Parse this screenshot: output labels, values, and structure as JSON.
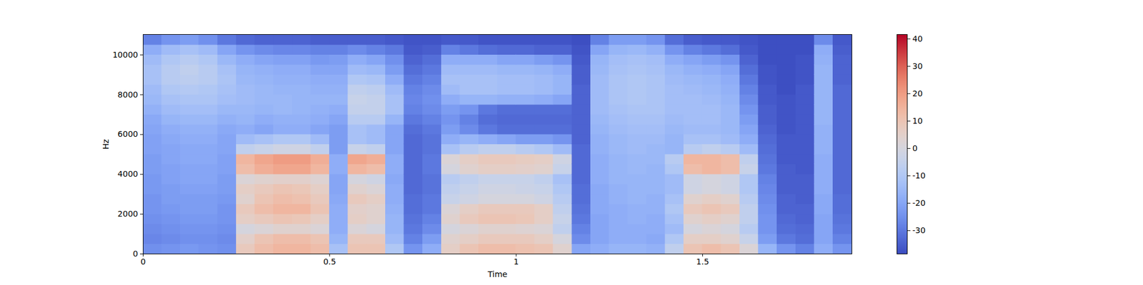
{
  "chart_data": {
    "type": "heatmap",
    "xlabel": "Time",
    "ylabel": "Hz",
    "xlim": [
      0,
      1.9
    ],
    "ylim": [
      0,
      11025
    ],
    "xticks": [
      0,
      0.5,
      1,
      1.5
    ],
    "yticks": [
      0,
      2000,
      4000,
      6000,
      8000,
      10000
    ],
    "time_edges": [
      0,
      0.05,
      0.1,
      0.15,
      0.2,
      0.25,
      0.3,
      0.35,
      0.4,
      0.45,
      0.5,
      0.55,
      0.6,
      0.65,
      0.7,
      0.75,
      0.8,
      0.85,
      0.9,
      0.95,
      1,
      1.05,
      1.1,
      1.15,
      1.2,
      1.25,
      1.3,
      1.35,
      1.4,
      1.45,
      1.5,
      1.55,
      1.6,
      1.65,
      1.7,
      1.75,
      1.8,
      1.85,
      1.9
    ],
    "freq_edges": [
      0,
      500,
      1000,
      1500,
      2000,
      2500,
      3000,
      3500,
      4000,
      4500,
      5000,
      5500,
      6000,
      6500,
      7000,
      7500,
      8000,
      8500,
      9000,
      9500,
      10000,
      10500,
      11025
    ],
    "cells": [
      [
        -25,
        -27,
        -26,
        -25,
        -24,
        -24,
        -23,
        -23,
        -22,
        -22,
        -21,
        -21,
        -20,
        -19,
        -17,
        -15,
        -14,
        -12,
        -12,
        -14,
        -18,
        -28
      ],
      [
        -24,
        -26,
        -25,
        -24,
        -23,
        -22,
        -22,
        -21,
        -21,
        -20,
        -20,
        -19,
        -18,
        -16,
        -14,
        -12,
        -10,
        -8,
        -8,
        -10,
        -14,
        -24
      ],
      [
        -23,
        -25,
        -24,
        -23,
        -22,
        -22,
        -21,
        -20,
        -20,
        -19,
        -19,
        -18,
        -17,
        -15,
        -13,
        -11,
        -9,
        -7,
        -6,
        -8,
        -12,
        -22
      ],
      [
        -24,
        -25,
        -24,
        -23,
        -22,
        -22,
        -21,
        -20,
        -20,
        -19,
        -19,
        -18,
        -17,
        -15,
        -13,
        -11,
        -10,
        -8,
        -8,
        -10,
        -14,
        -25
      ],
      [
        -25,
        -26,
        -25,
        -24,
        -24,
        -23,
        -22,
        -22,
        -21,
        -21,
        -20,
        -20,
        -19,
        -17,
        -15,
        -13,
        -12,
        -11,
        -12,
        -15,
        -20,
        -30
      ],
      [
        8,
        5,
        0,
        6,
        8,
        4,
        6,
        2,
        12,
        14,
        -6,
        -14,
        -18,
        -16,
        -15,
        -14,
        -14,
        -15,
        -16,
        -18,
        -24,
        -33
      ],
      [
        12,
        10,
        2,
        8,
        12,
        10,
        8,
        4,
        16,
        18,
        -4,
        -12,
        -20,
        -18,
        -16,
        -15,
        -15,
        -16,
        -17,
        -20,
        -26,
        -34
      ],
      [
        14,
        12,
        4,
        10,
        14,
        12,
        10,
        5,
        18,
        20,
        -2,
        -10,
        -18,
        -17,
        -15,
        -15,
        -16,
        -17,
        -18,
        -21,
        -27,
        -34
      ],
      [
        14,
        12,
        4,
        9,
        14,
        11,
        9,
        5,
        18,
        20,
        -2,
        -10,
        -18,
        -17,
        -16,
        -16,
        -16,
        -17,
        -18,
        -21,
        -27,
        -34
      ],
      [
        12,
        10,
        2,
        6,
        10,
        8,
        6,
        3,
        14,
        16,
        -6,
        -14,
        -20,
        -18,
        -17,
        -16,
        -17,
        -18,
        -20,
        -23,
        -28,
        -35
      ],
      [
        -12,
        -16,
        -18,
        -18,
        -18,
        -19,
        -20,
        -20,
        -18,
        -18,
        -22,
        -22,
        -22,
        -20,
        -18,
        -16,
        -17,
        -18,
        -20,
        -22,
        -28,
        -35
      ],
      [
        10,
        8,
        2,
        6,
        5,
        8,
        4,
        0,
        14,
        18,
        -4,
        -12,
        -12,
        -8,
        -5,
        -4,
        -6,
        -10,
        -14,
        -18,
        -26,
        -35
      ],
      [
        10,
        8,
        0,
        4,
        4,
        6,
        2,
        -2,
        12,
        16,
        -6,
        -14,
        -14,
        -8,
        -5,
        -5,
        -7,
        -11,
        -15,
        -20,
        -28,
        -35
      ],
      [
        -10,
        -14,
        -16,
        -16,
        -17,
        -18,
        -18,
        -19,
        -18,
        -18,
        -20,
        -20,
        -20,
        -16,
        -12,
        -12,
        -14,
        -18,
        -22,
        -25,
        -30,
        -36
      ],
      [
        -24,
        -28,
        -30,
        -31,
        -32,
        -32,
        -33,
        -33,
        -33,
        -33,
        -33,
        -33,
        -32,
        -30,
        -28,
        -27,
        -28,
        -30,
        -32,
        -34,
        -36,
        -37
      ],
      [
        -18,
        -22,
        -26,
        -28,
        -30,
        -30,
        -31,
        -31,
        -30,
        -30,
        -31,
        -31,
        -30,
        -28,
        -26,
        -25,
        -26,
        -28,
        -30,
        -32,
        -35,
        -37
      ],
      [
        6,
        4,
        0,
        4,
        2,
        -4,
        -6,
        -8,
        0,
        2,
        -12,
        -18,
        -22,
        -24,
        -22,
        -18,
        -14,
        -12,
        -14,
        -18,
        -28,
        -36
      ],
      [
        10,
        6,
        2,
        8,
        6,
        -2,
        -4,
        -6,
        4,
        6,
        -8,
        -16,
        -26,
        -28,
        -24,
        -16,
        -12,
        -12,
        -14,
        -18,
        -30,
        -36
      ],
      [
        12,
        8,
        4,
        10,
        8,
        0,
        -2,
        -4,
        6,
        8,
        -6,
        -18,
        -30,
        -32,
        -30,
        -16,
        -12,
        -12,
        -14,
        -18,
        -32,
        -37
      ],
      [
        12,
        8,
        4,
        10,
        8,
        0,
        -2,
        -4,
        6,
        8,
        -6,
        -20,
        -32,
        -33,
        -32,
        -17,
        -13,
        -13,
        -15,
        -20,
        -33,
        -37
      ],
      [
        11,
        8,
        3,
        9,
        8,
        0,
        -3,
        -4,
        5,
        7,
        -8,
        -22,
        -32,
        -33,
        -32,
        -17,
        -13,
        -13,
        -15,
        -20,
        -33,
        -37
      ],
      [
        10,
        6,
        2,
        6,
        6,
        -2,
        -4,
        -6,
        4,
        6,
        -10,
        -22,
        -32,
        -33,
        -32,
        -18,
        -14,
        -14,
        -16,
        -22,
        -34,
        -37
      ],
      [
        4,
        0,
        -6,
        -4,
        -6,
        -8,
        -10,
        -12,
        -4,
        -2,
        -14,
        -24,
        -32,
        -33,
        -32,
        -20,
        -16,
        -16,
        -18,
        -24,
        -34,
        -37
      ],
      [
        -20,
        -26,
        -28,
        -30,
        -31,
        -32,
        -32,
        -33,
        -33,
        -33,
        -33,
        -34,
        -34,
        -34,
        -34,
        -34,
        -34,
        -35,
        -35,
        -36,
        -37,
        -38
      ],
      [
        -18,
        -20,
        -20,
        -20,
        -19,
        -19,
        -19,
        -18,
        -18,
        -18,
        -17,
        -17,
        -16,
        -15,
        -14,
        -14,
        -14,
        -14,
        -15,
        -16,
        -20,
        -28
      ],
      [
        -16,
        -18,
        -18,
        -18,
        -18,
        -17,
        -17,
        -16,
        -16,
        -16,
        -15,
        -15,
        -14,
        -13,
        -12,
        -11,
        -11,
        -11,
        -12,
        -13,
        -16,
        -22
      ],
      [
        -16,
        -18,
        -18,
        -17,
        -17,
        -16,
        -16,
        -16,
        -15,
        -15,
        -14,
        -14,
        -13,
        -12,
        -11,
        -10,
        -10,
        -10,
        -11,
        -12,
        -15,
        -22
      ],
      [
        -17,
        -19,
        -18,
        -18,
        -17,
        -17,
        -16,
        -16,
        -16,
        -15,
        -15,
        -14,
        -13,
        -12,
        -11,
        -11,
        -11,
        -11,
        -12,
        -13,
        -17,
        -24
      ],
      [
        -6,
        -10,
        -14,
        -12,
        -10,
        -12,
        -14,
        -14,
        -10,
        -8,
        -16,
        -16,
        -15,
        -14,
        -13,
        -13,
        -13,
        -14,
        -15,
        -18,
        -24,
        -32
      ],
      [
        10,
        6,
        0,
        4,
        8,
        4,
        -2,
        -2,
        12,
        14,
        -8,
        -12,
        -14,
        -13,
        -13,
        -13,
        -14,
        -15,
        -17,
        -20,
        -28,
        -35
      ],
      [
        12,
        6,
        2,
        6,
        10,
        6,
        0,
        0,
        14,
        14,
        -6,
        -12,
        -14,
        -13,
        -13,
        -14,
        -15,
        -16,
        -18,
        -22,
        -30,
        -36
      ],
      [
        10,
        4,
        0,
        4,
        8,
        4,
        -2,
        -2,
        12,
        12,
        -8,
        -14,
        -15,
        -15,
        -15,
        -16,
        -17,
        -18,
        -20,
        -24,
        -32,
        -36
      ],
      [
        2,
        -4,
        -8,
        -6,
        -6,
        -8,
        -10,
        -10,
        -4,
        -6,
        -14,
        -18,
        -20,
        -22,
        -24,
        -26,
        -28,
        -30,
        -32,
        -34,
        -36,
        -37
      ],
      [
        -16,
        -22,
        -24,
        -24,
        -25,
        -26,
        -27,
        -28,
        -30,
        -31,
        -32,
        -33,
        -34,
        -35,
        -35,
        -36,
        -36,
        -37,
        -37,
        -38,
        -38,
        -38
      ],
      [
        -24,
        -30,
        -32,
        -33,
        -34,
        -34,
        -35,
        -35,
        -35,
        -36,
        -36,
        -36,
        -37,
        -37,
        -37,
        -37,
        -38,
        -38,
        -38,
        -38,
        -38,
        -38
      ],
      [
        -28,
        -32,
        -33,
        -34,
        -34,
        -35,
        -35,
        -35,
        -36,
        -36,
        -36,
        -36,
        -36,
        -36,
        -36,
        -36,
        -36,
        -37,
        -37,
        -37,
        -38,
        -38
      ],
      [
        -18,
        -20,
        -20,
        -20,
        -19,
        -19,
        -18,
        -18,
        -18,
        -18,
        -17,
        -17,
        -17,
        -16,
        -16,
        -16,
        -16,
        -16,
        -16,
        -17,
        -18,
        -26
      ],
      [
        -24,
        -28,
        -30,
        -31,
        -32,
        -32,
        -33,
        -33,
        -33,
        -33,
        -33,
        -33,
        -33,
        -33,
        -33,
        -33,
        -33,
        -34,
        -34,
        -34,
        -35,
        -36
      ]
    ],
    "colorbar": {
      "range": [
        -38.5,
        41.6
      ],
      "ticks": [
        -30,
        -20,
        -10,
        0,
        10,
        20,
        30,
        40
      ]
    }
  }
}
